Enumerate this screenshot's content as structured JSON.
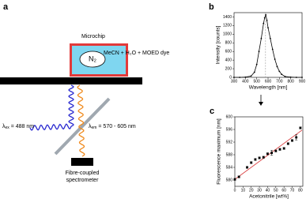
{
  "diagram": {
    "panel_label": "a",
    "microchip": "Microchip",
    "solution": "MeCN + H₂O + MOED dye",
    "gas": "N₂",
    "excitation": {
      "symbol": "λ",
      "subscript": "ex",
      "text": " = 488 nm"
    },
    "emission": {
      "symbol": "λ",
      "subscript": "em",
      "text": " =  570 - 605 nm"
    },
    "detector": [
      "Fibre-coupled",
      "spectrometer"
    ]
  },
  "chart_data": [
    {
      "type": "line",
      "panel_label": "b",
      "x_label": "Wavelength [nm]",
      "y_label": "Intensity [counts]",
      "x": [
        300,
        350,
        400,
        450,
        480,
        500,
        520,
        540,
        560,
        570,
        580,
        590,
        600,
        620,
        640,
        660,
        680,
        700,
        720,
        750,
        800,
        850,
        900
      ],
      "values": [
        0,
        0,
        5,
        30,
        120,
        300,
        600,
        900,
        1250,
        1380,
        1450,
        1320,
        1150,
        900,
        650,
        420,
        250,
        140,
        70,
        20,
        5,
        0,
        0
      ],
      "color": "#000000",
      "reference_x": 578,
      "xlim": [
        300,
        900
      ],
      "xticks": [
        300,
        400,
        500,
        600,
        700,
        800,
        900
      ],
      "ylim": [
        0,
        1500
      ],
      "yticks": [
        0,
        200,
        400,
        600,
        800,
        1000,
        1200,
        1400
      ]
    },
    {
      "type": "scatter",
      "panel_label": "c",
      "x_label": "Acetonitrile [wt%]",
      "y_label": "Fluorescence maximum [nm]",
      "x": [
        0,
        5,
        15,
        20,
        25,
        30,
        35,
        40,
        45,
        50,
        55,
        60,
        65,
        70,
        75,
        80
      ],
      "values": [
        580.2,
        581,
        584,
        585.5,
        586.5,
        587,
        587.2,
        588.3,
        588.6,
        589.2,
        589.7,
        590,
        591.5,
        592.5,
        593.5,
        596.5
      ],
      "errors": [
        0.3,
        0.3,
        0.3,
        0.3,
        0.3,
        0.3,
        0.3,
        0.3,
        0.8,
        0.3,
        0.3,
        0.3,
        0.3,
        0.3,
        0.8,
        0.3
      ],
      "color": "#000000",
      "fit": {
        "x": [
          0,
          82
        ],
        "values": [
          580.2,
          595.8
        ],
        "color": "#d62728"
      },
      "xlim": [
        0,
        83
      ],
      "xticks": [
        0,
        10,
        20,
        30,
        40,
        50,
        60,
        70,
        80
      ],
      "ylim": [
        578,
        600
      ],
      "yticks": [
        580,
        584,
        588,
        592,
        596,
        600
      ]
    }
  ]
}
